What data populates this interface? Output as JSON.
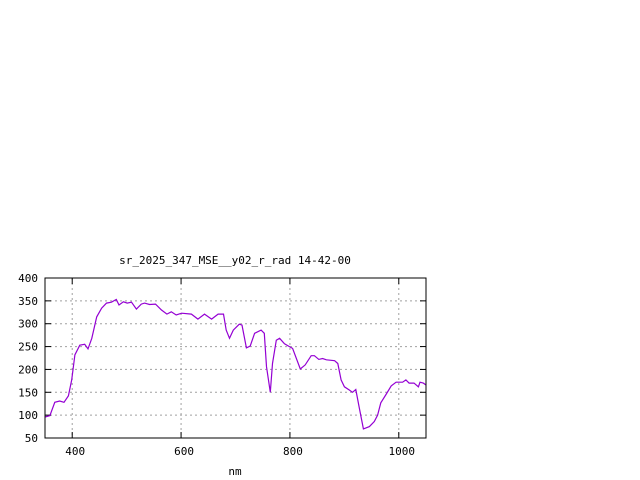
{
  "chart_data": {
    "type": "line",
    "title": "sr_2025_347_MSE__y02_r_rad 14-42-00",
    "xlabel": "nm",
    "ylabel": "",
    "xlim": [
      350,
      1050
    ],
    "ylim": [
      50,
      400
    ],
    "xticks": [
      400,
      600,
      800,
      1000
    ],
    "yticks": [
      50,
      100,
      150,
      200,
      250,
      300,
      350,
      400
    ],
    "grid": true,
    "legend": "none",
    "line_color": "#9400d3",
    "series": [
      {
        "x": [
          350,
          359,
          368,
          377,
          385,
          393,
          399,
          405,
          414,
          423,
          429,
          436,
          445,
          454,
          463,
          472,
          481,
          486,
          494,
          501,
          509,
          518,
          527,
          533,
          542,
          553,
          564,
          574,
          582,
          591,
          601,
          619,
          631,
          643,
          656,
          668,
          678,
          683,
          689,
          696,
          707,
          712,
          720,
          727,
          735,
          747,
          753,
          757,
          764,
          768,
          775,
          781,
          790,
          799,
          805,
          819,
          828,
          839,
          845,
          853,
          860,
          867,
          882,
          888,
          894,
          900,
          909,
          915,
          921,
          927,
          935,
          946,
          955,
          961,
          967,
          976,
          986,
          995,
          1007,
          1013,
          1019,
          1028,
          1036,
          1039,
          1045,
          1050
        ],
        "y": [
          96,
          99,
          128,
          131,
          128,
          142,
          177,
          232,
          253,
          255,
          245,
          268,
          315,
          334,
          345,
          347,
          353,
          341,
          348,
          345,
          347,
          332,
          343,
          345,
          342,
          343,
          330,
          321,
          326,
          319,
          323,
          321,
          310,
          321,
          310,
          321,
          321,
          286,
          268,
          286,
          299,
          297,
          247,
          251,
          279,
          286,
          279,
          206,
          150,
          213,
          264,
          268,
          256,
          250,
          246,
          201,
          210,
          230,
          230,
          222,
          224,
          221,
          219,
          213,
          177,
          162,
          155,
          150,
          156,
          118,
          70,
          75,
          86,
          100,
          127,
          144,
          164,
          172,
          172,
          177,
          170,
          170,
          162,
          172,
          170,
          166
        ]
      }
    ]
  }
}
